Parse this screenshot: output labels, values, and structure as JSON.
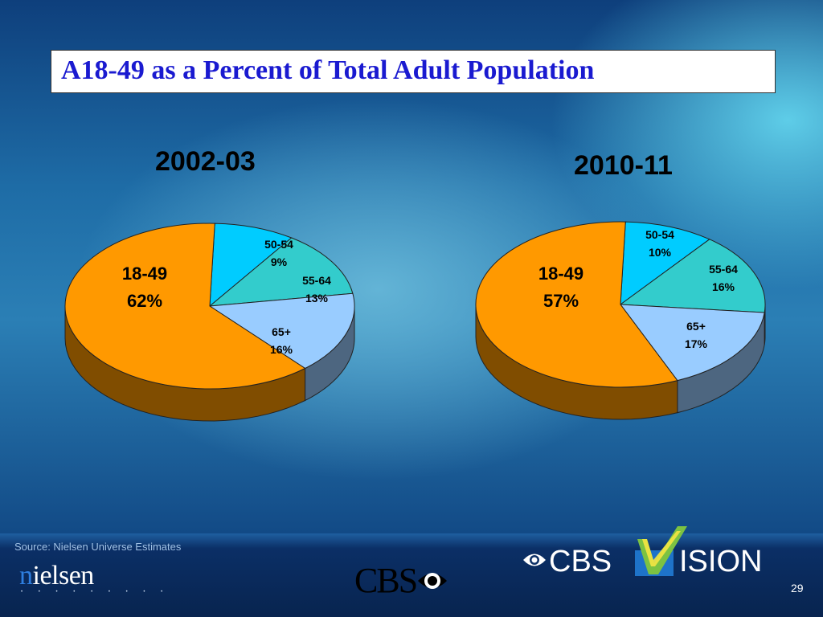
{
  "slide": {
    "title": "A18-49 as a Percent of Total Adult Population",
    "source": "Source: Nielsen Universe Estimates",
    "page_number": "29"
  },
  "logos": {
    "nielsen": "nielsen",
    "cbs": "CBS",
    "cbs_vision_left": "CBS",
    "cbs_vision_right": "ISION"
  },
  "colors": {
    "18-49": "#FF9900",
    "50-54": "#00CCFF",
    "55-64": "#33CCCC",
    "65+": "#99CCFF",
    "title_text": "#1A1AD0"
  },
  "chart_data": [
    {
      "type": "pie",
      "title": "2002-03",
      "slices": [
        {
          "label": "18-49",
          "value": 62,
          "display": "62%"
        },
        {
          "label": "50-54",
          "value": 9,
          "display": "9%"
        },
        {
          "label": "55-64",
          "value": 13,
          "display": "13%"
        },
        {
          "label": "65+",
          "value": 16,
          "display": "16%"
        }
      ]
    },
    {
      "type": "pie",
      "title": "2010-11",
      "slices": [
        {
          "label": "18-49",
          "value": 57,
          "display": "57%"
        },
        {
          "label": "50-54",
          "value": 10,
          "display": "10%"
        },
        {
          "label": "55-64",
          "value": 16,
          "display": "16%"
        },
        {
          "label": "65+",
          "value": 17,
          "display": "17%"
        }
      ]
    }
  ]
}
